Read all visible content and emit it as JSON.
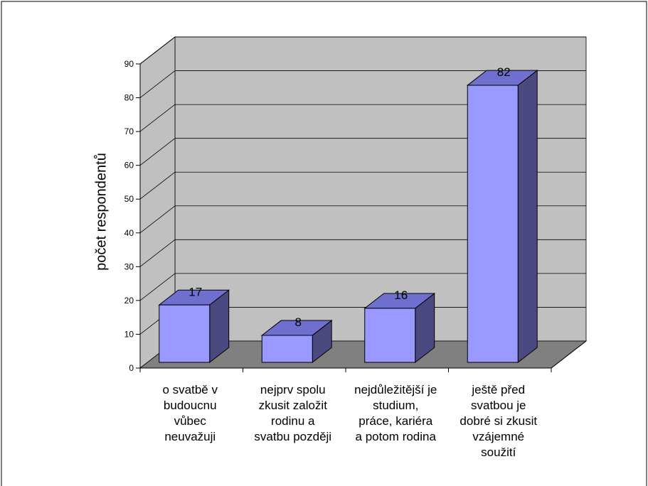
{
  "chart_data": {
    "type": "bar",
    "style": "3d-column",
    "categories": [
      "o svatbě v budoucnu vůbec neuvažuji",
      "nejprv spolu zkusit založit rodinu a svatbu později",
      "nejdůležitější je studium, práce, kariéra a potom rodina",
      "ještě před svatbou je dobré si zkusit vzájemné soužití"
    ],
    "category_lines": [
      [
        "o svatbě v",
        "budoucnu",
        "vůbec",
        "neuvažuji"
      ],
      [
        "nejprv spolu",
        "zkusit založit",
        "rodinu a",
        "svatbu později"
      ],
      [
        "nejdůležitější je",
        "studium,",
        "práce, kariéra",
        "a potom rodina"
      ],
      [
        "ještě před",
        "svatbou je",
        "dobré si zkusit",
        "vzájemné",
        "soužití"
      ]
    ],
    "values": [
      17,
      8,
      16,
      82
    ],
    "data_labels": [
      "17",
      "8",
      "16",
      "82"
    ],
    "title": "",
    "xlabel": "",
    "ylabel": "počet respondentů",
    "ylim": [
      0,
      90
    ],
    "yticks": [
      "0",
      "10",
      "20",
      "30",
      "40",
      "50",
      "60",
      "70",
      "80",
      "90"
    ],
    "grid": true,
    "legend": "none",
    "colors": {
      "bar_front": "#9999ff",
      "bar_top": "#6f6fcf",
      "bar_side": "#4a4a80",
      "back_wall": "#c0c0c0",
      "side_wall": "#c0c0c0",
      "floor": "#808080"
    }
  }
}
